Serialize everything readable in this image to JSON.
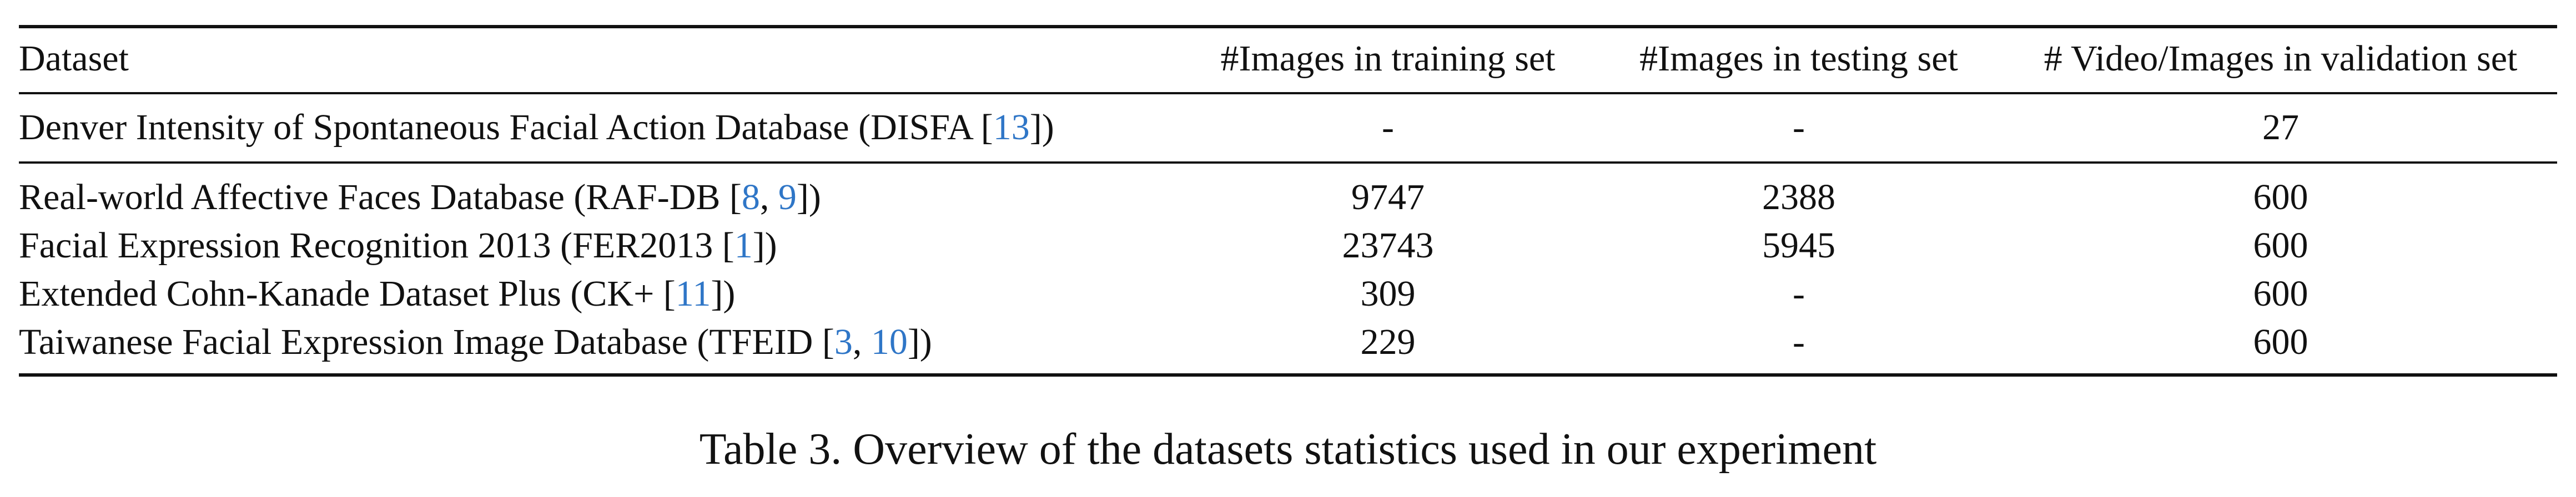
{
  "table": {
    "headers": [
      "Dataset",
      "#Images in training set",
      "#Images in testing set",
      "# Video/Images in validation set"
    ],
    "rows": [
      {
        "name_prefix": "Denver Intensity of Spontaneous Facial Action Database (DISFA [",
        "cites": [
          "13"
        ],
        "name_suffix": "])",
        "train": "-",
        "test": "-",
        "val": "27"
      },
      {
        "name_prefix": "Real-world Affective Faces Database (RAF-DB [",
        "cites": [
          "8",
          "9"
        ],
        "name_suffix": "])",
        "train": "9747",
        "test": "2388",
        "val": "600"
      },
      {
        "name_prefix": "Facial Expression Recognition 2013 (FER2013 [",
        "cites": [
          "1"
        ],
        "name_suffix": "])",
        "train": "23743",
        "test": "5945",
        "val": "600"
      },
      {
        "name_prefix": "Extended Cohn-Kanade Dataset Plus (CK+ [",
        "cites": [
          "11"
        ],
        "name_suffix": "])",
        "train": "309",
        "test": "-",
        "val": "600"
      },
      {
        "name_prefix": "Taiwanese Facial Expression Image Database (TFEID [",
        "cites": [
          "3",
          "10"
        ],
        "name_suffix": "])",
        "train": "229",
        "test": "-",
        "val": "600"
      }
    ],
    "cite_separator": ", "
  },
  "caption": "Table 3. Overview of the datasets statistics used in our experiment",
  "colors": {
    "text": "#111111",
    "citation": "#2f76c7",
    "rule": "#111111"
  }
}
